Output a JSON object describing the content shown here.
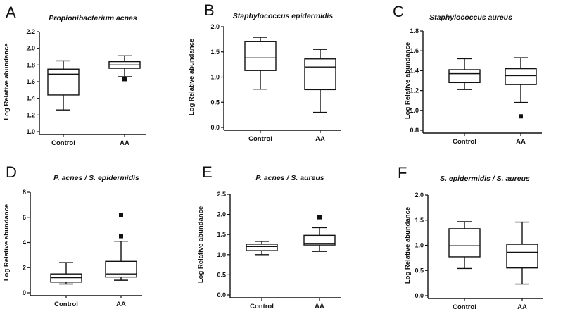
{
  "chart_data": [
    {
      "panel": "A",
      "type": "box",
      "title": "Propionibacterium acnes",
      "xlabel": "",
      "ylabel": "Log Relative abundance",
      "ylim": [
        1.0,
        2.2
      ],
      "yticks": [
        "1.0",
        "1.2",
        "1.4",
        "1.6",
        "1.8",
        "2.0",
        "2.2"
      ],
      "categories": [
        "Control",
        "AA"
      ],
      "boxes": [
        {
          "min": 1.26,
          "q1": 1.44,
          "median": 1.69,
          "q3": 1.75,
          "max": 1.85,
          "outliers": []
        },
        {
          "min": 1.66,
          "q1": 1.76,
          "median": 1.8,
          "q3": 1.84,
          "max": 1.91,
          "outliers": [
            1.63
          ]
        }
      ]
    },
    {
      "panel": "B",
      "type": "box",
      "title": "Staphylococcus epidermidis",
      "xlabel": "",
      "ylabel": "Log Relative abundance",
      "ylim": [
        0.0,
        2.0
      ],
      "yticks": [
        "0.0",
        "0.5",
        "1.0",
        "1.5",
        "2.0"
      ],
      "categories": [
        "Control",
        "AA"
      ],
      "boxes": [
        {
          "min": 0.76,
          "q1": 1.13,
          "median": 1.38,
          "q3": 1.71,
          "max": 1.79,
          "outliers": []
        },
        {
          "min": 0.3,
          "q1": 0.75,
          "median": 1.2,
          "q3": 1.36,
          "max": 1.55,
          "outliers": []
        }
      ]
    },
    {
      "panel": "C",
      "type": "box",
      "title": "Staphylococcus aureus",
      "xlabel": "",
      "ylabel": "Log Relative abundance",
      "ylim": [
        0.8,
        1.8
      ],
      "yticks": [
        "0.8",
        "1.0",
        "1.2",
        "1.4",
        "1.6",
        "1.8"
      ],
      "categories": [
        "Control",
        "AA"
      ],
      "boxes": [
        {
          "min": 1.21,
          "q1": 1.28,
          "median": 1.37,
          "q3": 1.41,
          "max": 1.52,
          "outliers": []
        },
        {
          "min": 1.08,
          "q1": 1.26,
          "median": 1.35,
          "q3": 1.42,
          "max": 1.53,
          "outliers": [
            0.94
          ]
        }
      ]
    },
    {
      "panel": "D",
      "type": "box",
      "title": "P. acnes / S. epidermidis",
      "xlabel": "",
      "ylabel": "Log Relative abundance",
      "ylim": [
        0,
        8
      ],
      "yticks": [
        "0",
        "2",
        "4",
        "6",
        "8"
      ],
      "categories": [
        "Control",
        "AA"
      ],
      "boxes": [
        {
          "min": 0.7,
          "q1": 0.85,
          "median": 1.2,
          "q3": 1.5,
          "max": 2.4,
          "outliers": []
        },
        {
          "min": 1.0,
          "q1": 1.25,
          "median": 1.5,
          "q3": 2.5,
          "max": 4.1,
          "outliers": [
            4.5,
            6.2
          ]
        }
      ]
    },
    {
      "panel": "E",
      "type": "box",
      "title": "P. acnes / S. aureus",
      "xlabel": "",
      "ylabel": "Log Relative abundance",
      "ylim": [
        0.0,
        2.5
      ],
      "yticks": [
        "0.0",
        "0.5",
        "1.0",
        "1.5",
        "2.0",
        "2.5"
      ],
      "categories": [
        "Control",
        "AA"
      ],
      "boxes": [
        {
          "min": 1.0,
          "q1": 1.1,
          "median": 1.2,
          "q3": 1.26,
          "max": 1.33,
          "outliers": []
        },
        {
          "min": 1.08,
          "q1": 1.24,
          "median": 1.28,
          "q3": 1.48,
          "max": 1.67,
          "outliers": [
            1.93
          ]
        }
      ]
    },
    {
      "panel": "F",
      "type": "box",
      "title": "S. epidermidis / S. aureus",
      "xlabel": "",
      "ylabel": "Log Relative abundance",
      "ylim": [
        0.0,
        2.0
      ],
      "yticks": [
        "0.0",
        "0.5",
        "1.0",
        "1.5",
        "2.0"
      ],
      "categories": [
        "Control",
        "AA"
      ],
      "boxes": [
        {
          "min": 0.54,
          "q1": 0.77,
          "median": 0.99,
          "q3": 1.33,
          "max": 1.47,
          "outliers": []
        },
        {
          "min": 0.23,
          "q1": 0.55,
          "median": 0.86,
          "q3": 1.02,
          "max": 1.46,
          "outliers": []
        }
      ]
    }
  ]
}
